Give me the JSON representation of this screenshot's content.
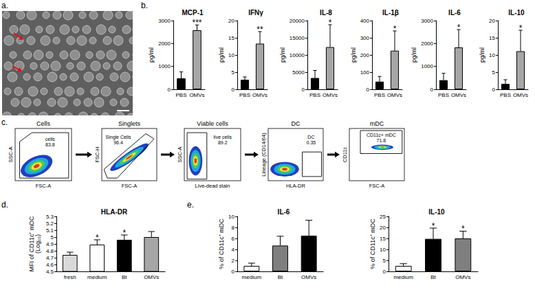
{
  "panel_labels": [
    "a.",
    "b.",
    "c.",
    "d.",
    "e."
  ],
  "gating": [
    {
      "title": "Cells",
      "xlabel": "FSC-A",
      "ylabel": "SSC-A",
      "gate_label": "cells",
      "gate_value": 83.8
    },
    {
      "title": "Singlets",
      "xlabel": "FSC-A",
      "ylabel": "FSC-H",
      "gate_label": "Single Cells",
      "gate_value": 96.4
    },
    {
      "title": "Viable cells",
      "xlabel": "Live-dead stain",
      "ylabel": "SSC-A",
      "gate_label": "live cells",
      "gate_value": 89.2
    },
    {
      "title": "DC",
      "xlabel": "HLA-DR",
      "ylabel": "Lineage (CD14/64)",
      "gate_label": "DC",
      "gate_value": 0.35
    },
    {
      "title": "mDC",
      "xlabel": "FSC-A",
      "ylabel": "CD11c",
      "gate_label": "CD11c+ mDC",
      "gate_value": 71.8
    }
  ],
  "chart_data": [
    {
      "type": "bar",
      "title": "MCP-1",
      "ylabel": "pg/ml",
      "categories": [
        "PBS",
        "OMVs"
      ],
      "values": [
        480,
        2580
      ],
      "errors": [
        280,
        230
      ],
      "significance": [
        null,
        "***"
      ],
      "colors": [
        "#000000",
        "#a6a6a6"
      ],
      "ylim": [
        0,
        3000
      ],
      "yticks": [
        0,
        1000,
        2000,
        3000
      ]
    },
    {
      "type": "bar",
      "title": "IFNγ",
      "ylabel": "pg/ml",
      "categories": [
        "PBS",
        "OMVs"
      ],
      "values": [
        2.8,
        13.3
      ],
      "errors": [
        0.8,
        3.5
      ],
      "significance": [
        null,
        "**"
      ],
      "colors": [
        "#000000",
        "#a6a6a6"
      ],
      "ylim": [
        0,
        20
      ],
      "yticks": [
        0,
        5,
        10,
        15,
        20
      ]
    },
    {
      "type": "bar",
      "title": "IL-8",
      "ylabel": "pg/ml",
      "categories": [
        "PBS",
        "OMVs"
      ],
      "values": [
        3300,
        12300
      ],
      "errors": [
        2200,
        6500
      ],
      "significance": [
        null,
        "*"
      ],
      "colors": [
        "#000000",
        "#a6a6a6"
      ],
      "ylim": [
        0,
        20000
      ],
      "yticks": [
        0,
        5000,
        10000,
        15000,
        20000
      ]
    },
    {
      "type": "bar",
      "title": "IL-1β",
      "ylabel": "pg/ml",
      "categories": [
        "PBS",
        "OMVs"
      ],
      "values": [
        45,
        225
      ],
      "errors": [
        30,
        115
      ],
      "significance": [
        null,
        "*"
      ],
      "colors": [
        "#000000",
        "#a6a6a6"
      ],
      "ylim": [
        0,
        400
      ],
      "yticks": [
        0,
        100,
        200,
        300,
        400
      ]
    },
    {
      "type": "bar",
      "title": "IL-6",
      "ylabel": "pg/ml",
      "categories": [
        "PBS",
        "OMVs"
      ],
      "values": [
        400,
        1830
      ],
      "errors": [
        300,
        780
      ],
      "significance": [
        null,
        "*"
      ],
      "colors": [
        "#000000",
        "#a6a6a6"
      ],
      "ylim": [
        0,
        3000
      ],
      "yticks": [
        0,
        1000,
        2000,
        3000
      ]
    },
    {
      "type": "bar",
      "title": "IL-10",
      "ylabel": "pg/ml",
      "categories": [
        "PBS",
        "OMVs"
      ],
      "values": [
        1.6,
        11.1
      ],
      "errors": [
        1.2,
        6.1
      ],
      "significance": [
        null,
        "*"
      ],
      "colors": [
        "#000000",
        "#a6a6a6"
      ],
      "ylim": [
        0,
        20
      ],
      "yticks": [
        0,
        5,
        10,
        15,
        20
      ]
    },
    {
      "type": "bar",
      "title": "HLA-DR",
      "ylabel": "MFI of CD11c⁺ mDC\n(Log₁₀)",
      "categories": [
        "fresh",
        "medium",
        "Bt",
        "OMVs"
      ],
      "values": [
        4.74,
        4.89,
        4.96,
        5.0
      ],
      "errors": [
        0.04,
        0.07,
        0.07,
        0.08
      ],
      "significance": [
        null,
        "*",
        "*",
        null
      ],
      "colors": [
        "#d9d9d9",
        "#ffffff",
        "#000000",
        "#a6a6a6"
      ],
      "ylim": [
        4.5,
        5.3
      ],
      "yticks": [
        4.5,
        4.6,
        4.7,
        4.8,
        4.9,
        5,
        5.1,
        5.2,
        5.3
      ]
    },
    {
      "type": "bar",
      "title": "IL-6",
      "ylabel": "% of CD11c⁺ mDC",
      "categories": [
        "medium",
        "Bt",
        "OMVs"
      ],
      "values": [
        1.0,
        4.7,
        6.5
      ],
      "errors": [
        0.5,
        1.7,
        2.8
      ],
      "significance": [
        null,
        null,
        null
      ],
      "colors": [
        "#ffffff",
        "#7f7f7f",
        "#000000"
      ],
      "ylim": [
        0,
        10
      ],
      "yticks": [
        0,
        2,
        4,
        6,
        8,
        10
      ]
    },
    {
      "type": "bar",
      "title": "IL-10",
      "ylabel": "% of CD11c⁺ mDC",
      "categories": [
        "medium",
        "Bt",
        "OMVs"
      ],
      "values": [
        2.5,
        14.8,
        15.0
      ],
      "errors": [
        1.0,
        4.9,
        3.3
      ],
      "significance": [
        null,
        "*",
        "*"
      ],
      "colors": [
        "#ffffff",
        "#000000",
        "#7f7f7f"
      ],
      "ylim": [
        0,
        25
      ],
      "yticks": [
        0,
        5,
        10,
        15,
        20,
        25
      ]
    }
  ]
}
